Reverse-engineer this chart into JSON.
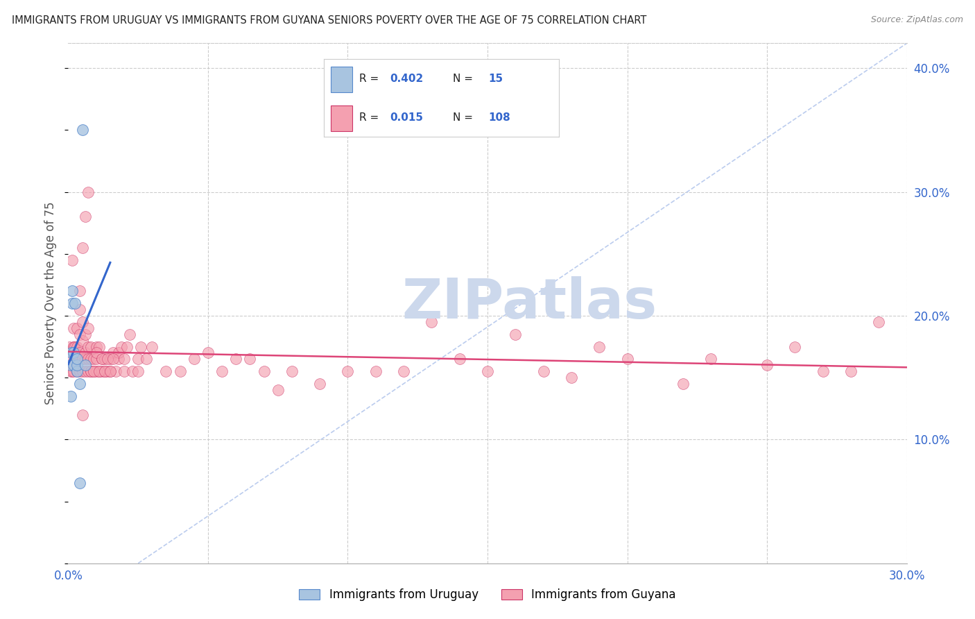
{
  "title": "IMMIGRANTS FROM URUGUAY VS IMMIGRANTS FROM GUYANA SENIORS POVERTY OVER THE AGE OF 75 CORRELATION CHART",
  "source": "Source: ZipAtlas.com",
  "ylabel": "Seniors Poverty Over the Age of 75",
  "xlim": [
    0.0,
    0.3
  ],
  "ylim": [
    0.0,
    0.42
  ],
  "uruguay_color": "#a8c4e0",
  "uruguay_edge_color": "#5588cc",
  "guyana_color": "#f4a0b0",
  "guyana_edge_color": "#cc3366",
  "uruguay_line_color": "#3366cc",
  "guyana_line_color": "#dd4477",
  "ref_line_color": "#bbccee",
  "uruguay_R": "0.402",
  "uruguay_N": "15",
  "guyana_R": "0.015",
  "guyana_N": "108",
  "watermark": "ZIPatlas",
  "watermark_color": "#ccd8ec",
  "background_color": "#ffffff",
  "grid_color": "#cccccc",
  "title_color": "#222222",
  "source_color": "#888888",
  "axis_label_color": "#555555",
  "tick_color": "#3366cc",
  "legend_R_color": "#222222",
  "legend_val_color": "#3366cc",
  "uruguay_x": [
    0.0008,
    0.001,
    0.0012,
    0.0015,
    0.0015,
    0.002,
    0.002,
    0.0025,
    0.003,
    0.003,
    0.003,
    0.004,
    0.004,
    0.005,
    0.006
  ],
  "uruguay_y": [
    0.135,
    0.16,
    0.17,
    0.21,
    0.22,
    0.16,
    0.17,
    0.21,
    0.155,
    0.16,
    0.165,
    0.145,
    0.065,
    0.35,
    0.16
  ],
  "guyana_x": [
    0.0005,
    0.001,
    0.001,
    0.0015,
    0.0015,
    0.002,
    0.002,
    0.002,
    0.002,
    0.0025,
    0.0025,
    0.003,
    0.003,
    0.003,
    0.003,
    0.003,
    0.003,
    0.004,
    0.004,
    0.004,
    0.004,
    0.004,
    0.005,
    0.005,
    0.005,
    0.005,
    0.005,
    0.006,
    0.006,
    0.006,
    0.006,
    0.007,
    0.007,
    0.007,
    0.007,
    0.008,
    0.008,
    0.008,
    0.009,
    0.009,
    0.01,
    0.01,
    0.01,
    0.011,
    0.011,
    0.012,
    0.012,
    0.013,
    0.013,
    0.014,
    0.015,
    0.015,
    0.016,
    0.017,
    0.018,
    0.018,
    0.019,
    0.02,
    0.02,
    0.021,
    0.022,
    0.023,
    0.025,
    0.025,
    0.026,
    0.028,
    0.03,
    0.035,
    0.04,
    0.045,
    0.05,
    0.055,
    0.06,
    0.065,
    0.07,
    0.075,
    0.08,
    0.09,
    0.1,
    0.11,
    0.12,
    0.13,
    0.14,
    0.15,
    0.16,
    0.17,
    0.18,
    0.19,
    0.2,
    0.22,
    0.23,
    0.25,
    0.26,
    0.27,
    0.28,
    0.29,
    0.005,
    0.006,
    0.007,
    0.008,
    0.009,
    0.01,
    0.011,
    0.012,
    0.013,
    0.014,
    0.015,
    0.016
  ],
  "guyana_y": [
    0.175,
    0.155,
    0.165,
    0.245,
    0.155,
    0.175,
    0.19,
    0.155,
    0.175,
    0.16,
    0.175,
    0.155,
    0.165,
    0.175,
    0.19,
    0.155,
    0.165,
    0.155,
    0.17,
    0.185,
    0.205,
    0.22,
    0.155,
    0.165,
    0.18,
    0.195,
    0.255,
    0.155,
    0.165,
    0.17,
    0.185,
    0.155,
    0.165,
    0.175,
    0.19,
    0.155,
    0.165,
    0.175,
    0.155,
    0.165,
    0.155,
    0.165,
    0.175,
    0.155,
    0.175,
    0.155,
    0.165,
    0.155,
    0.165,
    0.155,
    0.155,
    0.165,
    0.17,
    0.155,
    0.165,
    0.17,
    0.175,
    0.155,
    0.165,
    0.175,
    0.185,
    0.155,
    0.165,
    0.155,
    0.175,
    0.165,
    0.175,
    0.155,
    0.155,
    0.165,
    0.17,
    0.155,
    0.165,
    0.165,
    0.155,
    0.14,
    0.155,
    0.145,
    0.155,
    0.155,
    0.155,
    0.195,
    0.165,
    0.155,
    0.185,
    0.155,
    0.15,
    0.175,
    0.165,
    0.145,
    0.165,
    0.16,
    0.175,
    0.155,
    0.155,
    0.195,
    0.12,
    0.28,
    0.3,
    0.155,
    0.155,
    0.17,
    0.155,
    0.165,
    0.155,
    0.165,
    0.155,
    0.165
  ]
}
